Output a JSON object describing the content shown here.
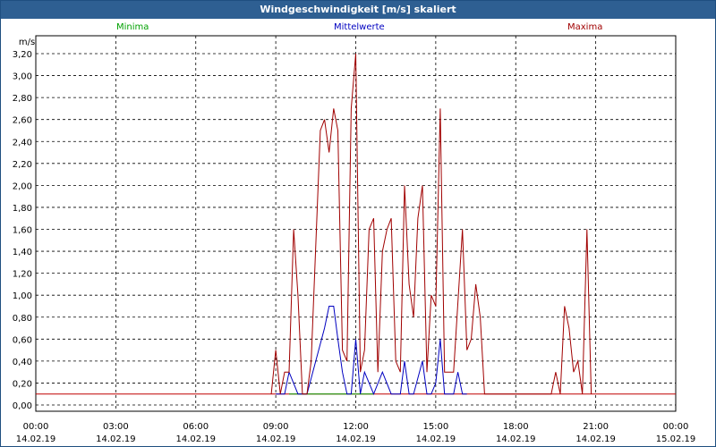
{
  "window": {
    "title": "Windgeschwindigkeit [m/s] skaliert"
  },
  "legend": [
    {
      "label": "Minima",
      "color": "#00a000"
    },
    {
      "label": "Mittelwerte",
      "color": "#0000c0"
    },
    {
      "label": "Maxima",
      "color": "#a00000"
    }
  ],
  "chart_data": {
    "type": "line",
    "ylabel": "m/s",
    "ylim": [
      0,
      3.3
    ],
    "yticks": [
      "0,00",
      "0,20",
      "0,40",
      "0,60",
      "0,80",
      "1,00",
      "1,20",
      "1,40",
      "1,60",
      "1,80",
      "2,00",
      "2,20",
      "2,40",
      "2,60",
      "2,80",
      "3,00",
      "3,20"
    ],
    "xlim_hours": [
      0,
      24
    ],
    "xticks": [
      {
        "time": "00:00",
        "date": "14.02.19"
      },
      {
        "time": "03:00",
        "date": "14.02.19"
      },
      {
        "time": "06:00",
        "date": "14.02.19"
      },
      {
        "time": "09:00",
        "date": "14.02.19"
      },
      {
        "time": "12:00",
        "date": "14.02.19"
      },
      {
        "time": "15:00",
        "date": "14.02.19"
      },
      {
        "time": "18:00",
        "date": "14.02.19"
      },
      {
        "time": "21:00",
        "date": "14.02.19"
      },
      {
        "time": "00:00",
        "date": "15.02.19"
      }
    ],
    "grid": true,
    "baseline": {
      "value": 0.1,
      "color": "#c00000"
    },
    "series": [
      {
        "name": "Minima",
        "color": "#00a000",
        "points": [
          [
            9.5,
            0
          ],
          [
            12.67,
            0
          ]
        ]
      },
      {
        "name": "Mittelwerte",
        "color": "#0000c0",
        "points": [
          [
            9,
            0
          ],
          [
            9.33,
            0
          ],
          [
            9.5,
            0.3
          ],
          [
            9.83,
            0
          ],
          [
            10.17,
            0
          ],
          [
            10.5,
            0.4
          ],
          [
            10.83,
            0.7
          ],
          [
            11.0,
            0.9
          ],
          [
            11.17,
            0.9
          ],
          [
            11.33,
            0.6
          ],
          [
            11.5,
            0.3
          ],
          [
            11.67,
            0
          ],
          [
            11.83,
            0
          ],
          [
            12.0,
            0.6
          ],
          [
            12.17,
            0
          ],
          [
            12.33,
            0.3
          ],
          [
            12.67,
            0
          ],
          [
            13.0,
            0.3
          ],
          [
            13.33,
            0
          ],
          [
            13.67,
            0
          ],
          [
            13.83,
            0.4
          ],
          [
            14.0,
            0
          ],
          [
            14.17,
            0
          ],
          [
            14.5,
            0.4
          ],
          [
            14.67,
            0
          ],
          [
            14.83,
            0
          ],
          [
            15.0,
            0.2
          ],
          [
            15.17,
            0.6
          ],
          [
            15.33,
            0
          ],
          [
            15.5,
            0
          ],
          [
            15.67,
            0
          ],
          [
            15.83,
            0.3
          ],
          [
            16.0,
            0
          ],
          [
            16.17,
            0
          ]
        ]
      },
      {
        "name": "Maxima",
        "color": "#a00000",
        "points": [
          [
            8.83,
            0
          ],
          [
            9.0,
            0.5
          ],
          [
            9.17,
            0
          ],
          [
            9.33,
            0.3
          ],
          [
            9.5,
            0.3
          ],
          [
            9.67,
            1.6
          ],
          [
            9.83,
            1.0
          ],
          [
            10.0,
            0
          ],
          [
            10.17,
            0
          ],
          [
            10.33,
            0.4
          ],
          [
            10.67,
            2.5
          ],
          [
            10.83,
            2.6
          ],
          [
            11.0,
            2.3
          ],
          [
            11.17,
            2.7
          ],
          [
            11.33,
            2.5
          ],
          [
            11.5,
            0.5
          ],
          [
            11.67,
            0.4
          ],
          [
            11.83,
            2.7
          ],
          [
            12.0,
            3.2
          ],
          [
            12.17,
            0.3
          ],
          [
            12.33,
            0.5
          ],
          [
            12.5,
            1.6
          ],
          [
            12.67,
            1.7
          ],
          [
            12.83,
            0.3
          ],
          [
            13.0,
            1.4
          ],
          [
            13.17,
            1.6
          ],
          [
            13.33,
            1.7
          ],
          [
            13.5,
            0.4
          ],
          [
            13.67,
            0.3
          ],
          [
            13.83,
            2.0
          ],
          [
            14.0,
            1.1
          ],
          [
            14.17,
            0.8
          ],
          [
            14.33,
            1.7
          ],
          [
            14.5,
            2.0
          ],
          [
            14.67,
            0.3
          ],
          [
            14.83,
            1.0
          ],
          [
            15.0,
            0.9
          ],
          [
            15.17,
            2.7
          ],
          [
            15.33,
            0.3
          ],
          [
            15.67,
            0.3
          ],
          [
            16.0,
            1.6
          ],
          [
            16.17,
            0.5
          ],
          [
            16.33,
            0.6
          ],
          [
            16.5,
            1.1
          ],
          [
            16.67,
            0.8
          ],
          [
            16.83,
            0
          ],
          [
            19.33,
            0
          ],
          [
            19.5,
            0.3
          ],
          [
            19.67,
            0
          ],
          [
            19.83,
            0.9
          ],
          [
            20.0,
            0.7
          ],
          [
            20.17,
            0.3
          ],
          [
            20.33,
            0.4
          ],
          [
            20.5,
            0
          ],
          [
            20.67,
            1.6
          ],
          [
            20.83,
            0
          ]
        ]
      }
    ]
  }
}
